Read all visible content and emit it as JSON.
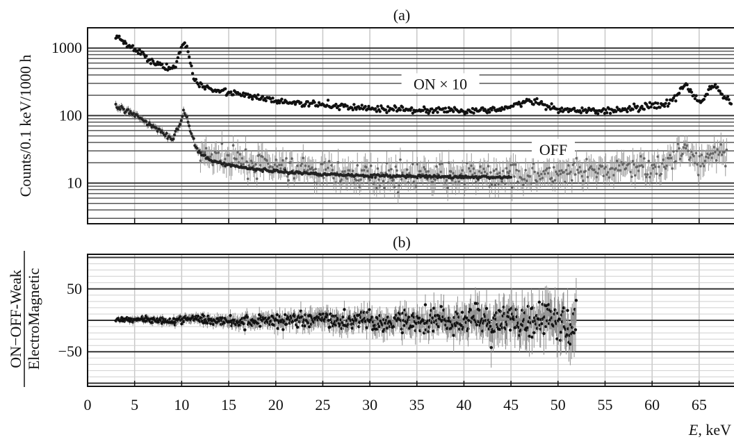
{
  "chart_data": [
    {
      "panel": "(a)",
      "type": "scatter",
      "yscale": "log",
      "ylabel": "Counts/0.1 keV/1000 h",
      "xlim": [
        0,
        69
      ],
      "ylim": [
        2.5,
        2000
      ],
      "yticks": [
        10,
        100,
        1000
      ],
      "ytick_labels": [
        "10",
        "100",
        "1000"
      ],
      "grid": true,
      "annotations": [
        {
          "text": "ON × 10",
          "x": 37.5,
          "y": 290
        },
        {
          "text": "OFF",
          "x": 49.5,
          "y": 31
        }
      ],
      "series": [
        {
          "x": [
            3,
            4,
            5,
            6,
            7,
            8,
            8.8,
            9.4,
            9.8,
            10.2,
            10.5,
            10.9,
            11.3,
            11.8,
            12.5,
            14,
            16,
            18,
            20,
            23,
            26,
            29,
            32,
            35,
            38,
            41,
            44,
            47,
            50,
            53,
            56,
            58,
            60,
            61.5,
            62.5,
            63.2,
            63.6,
            64.3,
            65.2,
            66.2,
            66.7,
            67.5,
            68.5
          ],
          "values": [
            1500,
            1200,
            950,
            780,
            640,
            530,
            490,
            520,
            850,
            1200,
            1100,
            650,
            360,
            290,
            270,
            240,
            205,
            185,
            165,
            150,
            140,
            130,
            125,
            122,
            120,
            118,
            125,
            165,
            120,
            118,
            120,
            130,
            140,
            150,
            180,
            260,
            290,
            200,
            160,
            250,
            290,
            200,
            150
          ]
        },
        {
          "x": [
            3,
            4,
            5,
            6,
            7,
            8,
            9,
            9.8,
            10.2,
            10.6,
            11,
            11.5,
            12,
            13,
            14,
            16,
            18,
            20,
            22,
            25,
            28,
            31,
            34,
            37,
            40,
            43,
            45
          ],
          "values": [
            135,
            118,
            100,
            85,
            70,
            56,
            46,
            75,
            110,
            92,
            55,
            34,
            27,
            22,
            20,
            17.5,
            16,
            15,
            14.3,
            13.6,
            13.1,
            12.8,
            12.6,
            12.4,
            12.3,
            12.2,
            12.2
          ]
        },
        {
          "x": [
            12,
            14,
            16,
            18,
            20,
            22,
            24,
            26,
            28,
            30,
            32,
            34,
            36,
            38,
            40,
            42,
            44,
            46,
            48,
            50,
            52,
            54,
            56,
            58,
            60,
            62,
            63.5,
            65,
            66.5,
            68
          ],
          "values": [
            26,
            23,
            21,
            19,
            17,
            16,
            15,
            14,
            13.5,
            13,
            13,
            13,
            13,
            13,
            13,
            13,
            13,
            14,
            13,
            13,
            14,
            15,
            16,
            17,
            18,
            20,
            33,
            20,
            30,
            22
          ]
        }
      ]
    },
    {
      "panel": "(b)",
      "type": "scatter",
      "ylabel": "ON−OFF-Weak / ElectroMagnetic",
      "ylabel_numerator": "ON−OFF-Weak",
      "ylabel_denominator": "ElectroMagnetic",
      "xlabel": "E, keV",
      "xlabel_var": "E",
      "xlabel_unit": ", keV",
      "xlim": [
        0,
        69
      ],
      "ylim": [
        -105,
        105
      ],
      "xticks": [
        0,
        5,
        10,
        15,
        20,
        25,
        30,
        35,
        40,
        45,
        50,
        55,
        60,
        65
      ],
      "yticks": [
        -50,
        50
      ],
      "ytick_labels": [
        "−50",
        "50"
      ],
      "grid": true,
      "series": [
        {
          "x": [
            3,
            5,
            7,
            9,
            11,
            13,
            15,
            17,
            19,
            21,
            23,
            25,
            27,
            29,
            31,
            33,
            35,
            37,
            39,
            41,
            43,
            45,
            47,
            49,
            51,
            52
          ],
          "values": [
            0,
            2,
            1,
            -1,
            3,
            0,
            0,
            -3,
            1,
            -2,
            2,
            0,
            -4,
            3,
            -5,
            2,
            -3,
            4,
            -8,
            6,
            -10,
            5,
            -8,
            9,
            -12,
            -2
          ],
          "spread": [
            5,
            7,
            8,
            9,
            10,
            11,
            13,
            15,
            17,
            18,
            20,
            21,
            22,
            23,
            25,
            26,
            28,
            30,
            33,
            35,
            38,
            40,
            42,
            44,
            48,
            50
          ]
        }
      ]
    }
  ]
}
